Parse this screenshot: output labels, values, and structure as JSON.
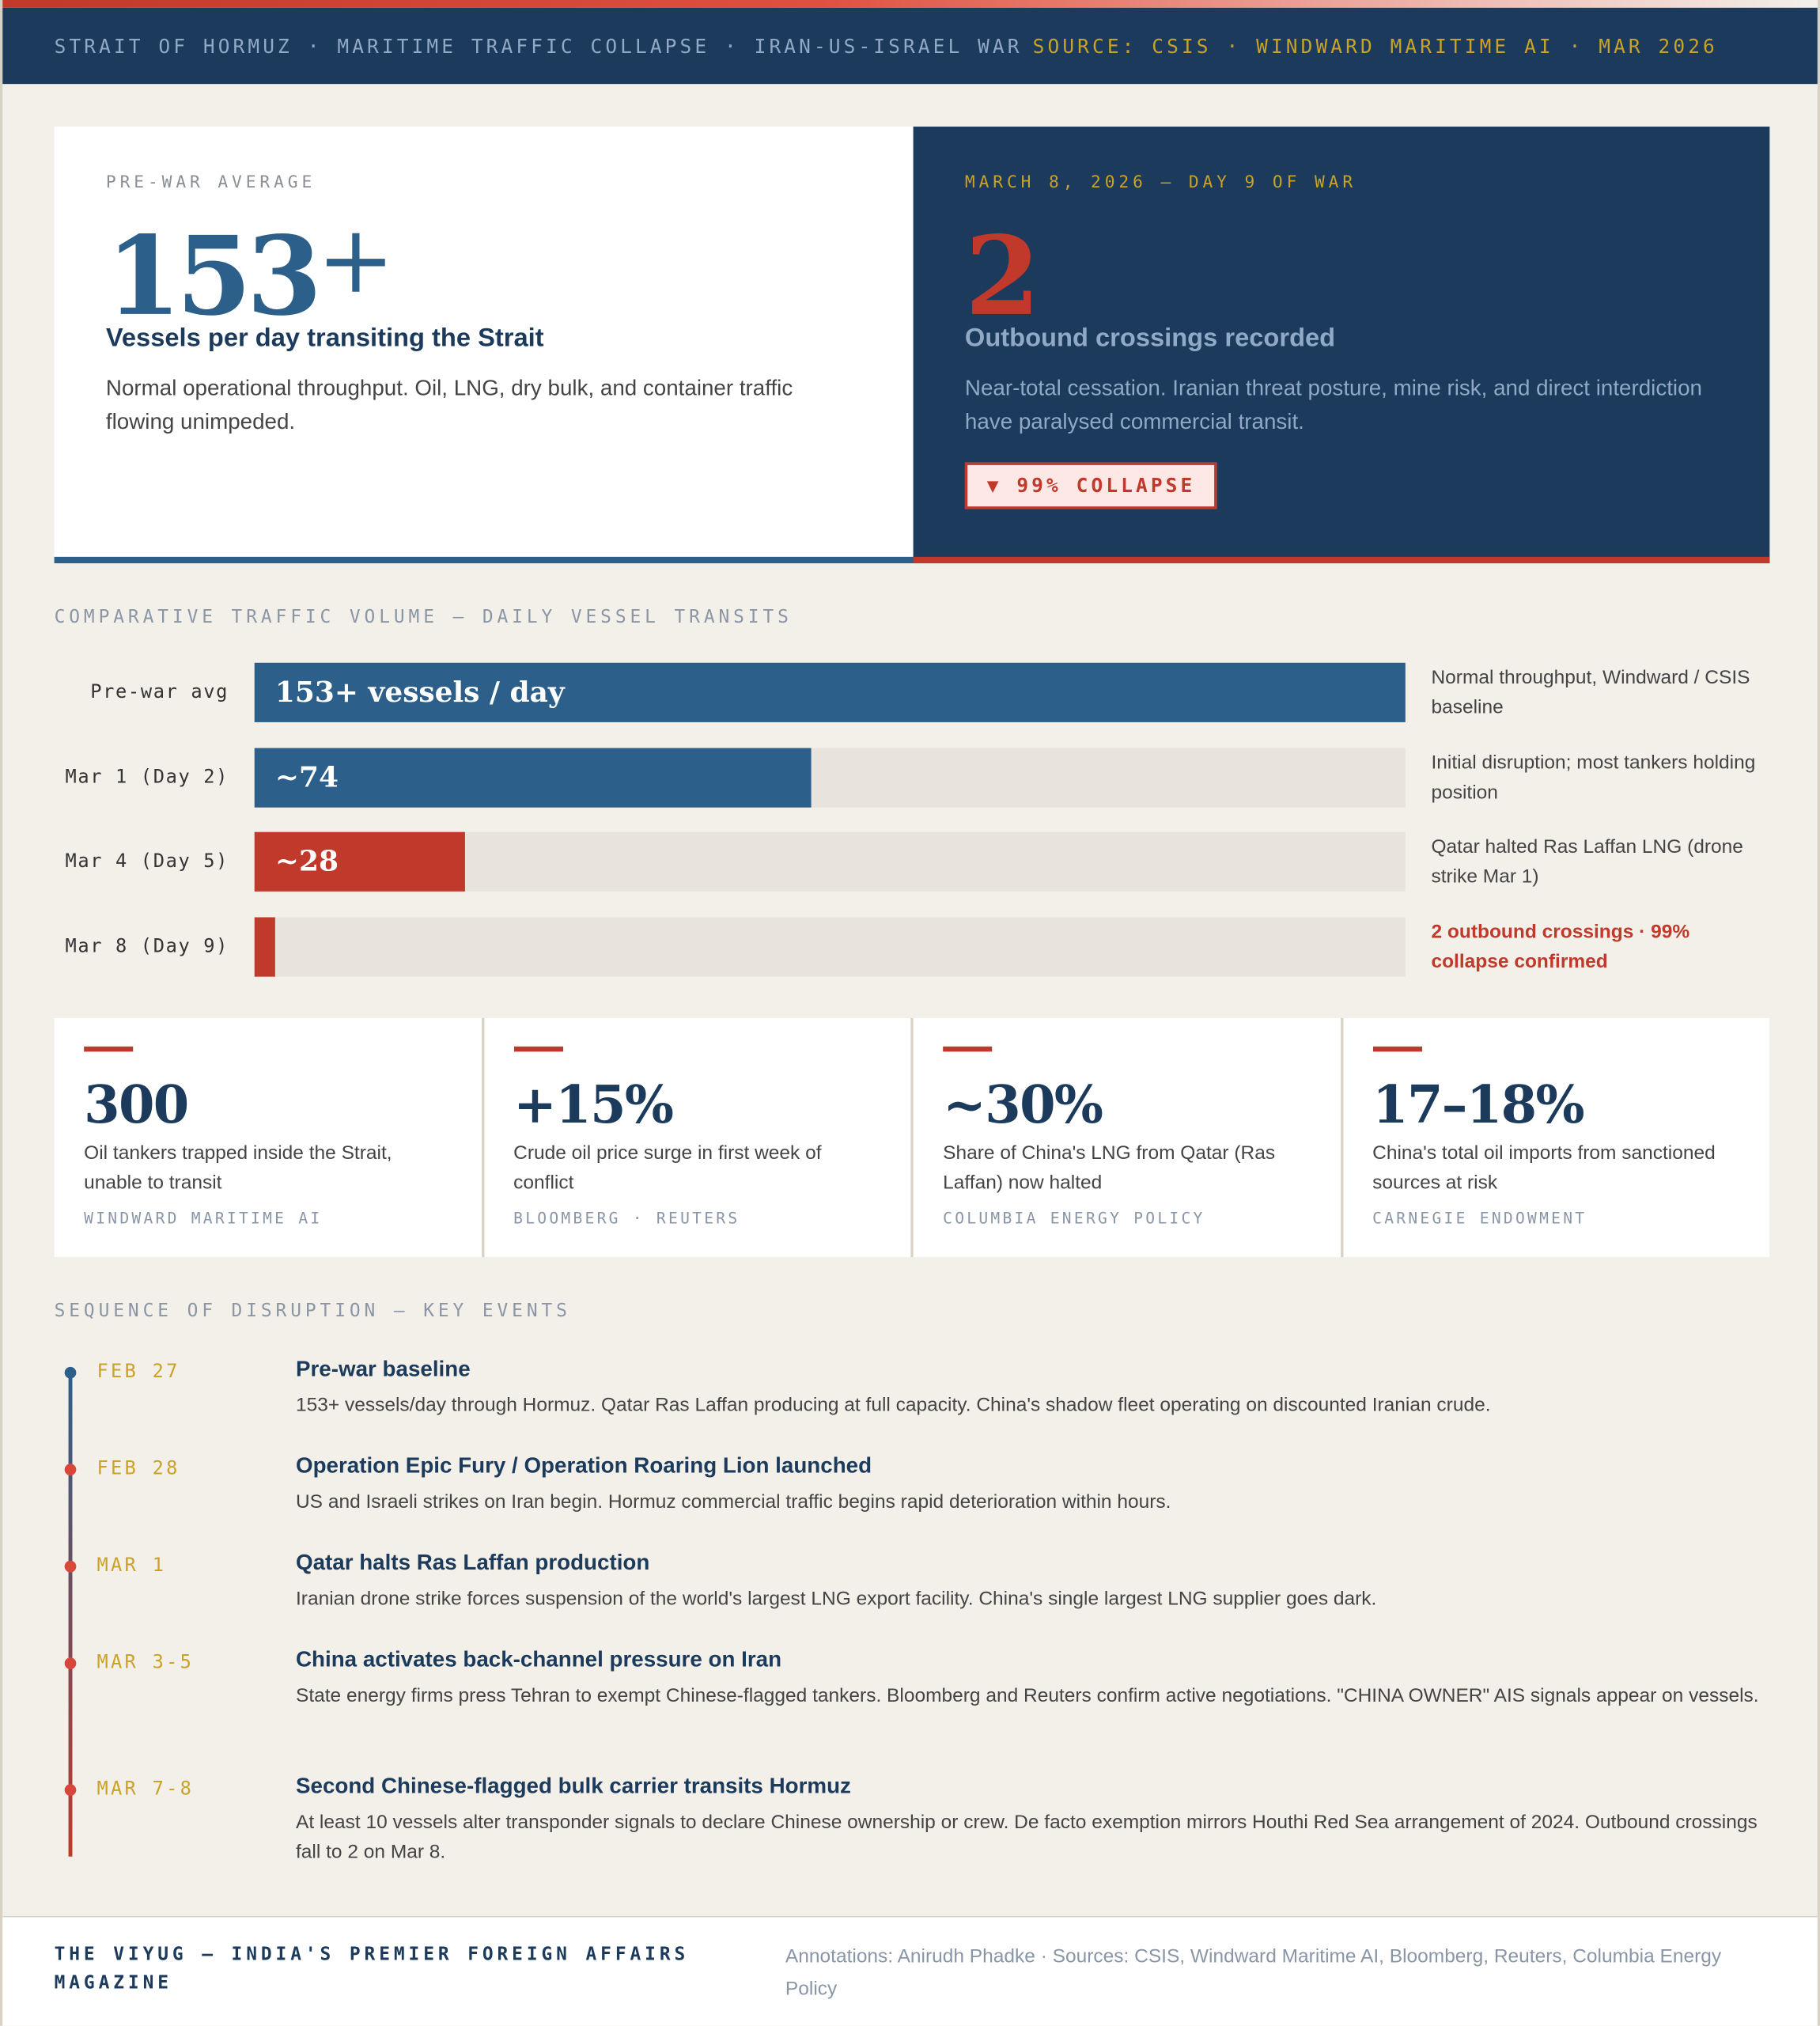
{
  "colors": {
    "navy": "#1b3a5c",
    "blue": "#2c5f8a",
    "red": "#c0392b",
    "gold": "#c9a227"
  },
  "header": {
    "title": "STRAIT OF HORMUZ · MARITIME TRAFFIC COLLAPSE · IRAN-US-ISRAEL WAR",
    "source": "SOURCE: CSIS · WINDWARD MARITIME AI · MAR 2026"
  },
  "hero": {
    "left": {
      "kicker": "PRE-WAR AVERAGE",
      "value": "153",
      "value_suffix": "+",
      "headline": "Vessels per day transiting the Strait",
      "desc": "Normal operational throughput. Oil, LNG, dry bulk, and container traffic flowing unimpeded."
    },
    "right": {
      "kicker": "MARCH 8, 2026 — DAY 9 OF WAR",
      "value": "2",
      "headline": "Outbound crossings recorded",
      "desc": "Near-total cessation. Iranian threat posture, mine risk, and direct interdiction have paralysed commercial transit.",
      "badge": "▼ 99% COLLAPSE"
    }
  },
  "chart_data": {
    "type": "bar",
    "title": "COMPARATIVE TRAFFIC VOLUME — DAILY VESSEL TRANSITS",
    "categories": [
      "Pre-war avg",
      "Mar 1 (Day 2)",
      "Mar 4 (Day 5)",
      "Mar 8 (Day 9)"
    ],
    "values": [
      153,
      74,
      28,
      2
    ],
    "value_labels": [
      "153+ vessels / day",
      "~74",
      "~28",
      ""
    ],
    "bar_colors": [
      "#2c5f8a",
      "#2c5f8a",
      "#c0392b",
      "#c0392b"
    ],
    "notes": [
      "Normal throughput, Windward / CSIS baseline",
      "Initial disruption; most tankers holding position",
      "Qatar halted Ras Laffan LNG (drone strike Mar 1)",
      "2 outbound crossings · 99% collapse confirmed"
    ],
    "xlim": [
      0,
      153
    ]
  },
  "stats": [
    {
      "value": "300",
      "desc": "Oil tankers trapped inside the Strait, unable to transit",
      "source": "WINDWARD MARITIME AI"
    },
    {
      "value": "+15%",
      "desc": "Crude oil price surge in first week of conflict",
      "source": "BLOOMBERG · REUTERS"
    },
    {
      "value": "~30%",
      "desc": "Share of China's LNG from Qatar (Ras Laffan) now halted",
      "source": "COLUMBIA ENERGY POLICY"
    },
    {
      "value": "17–18%",
      "desc": "China's total oil imports from sanctioned sources at risk",
      "source": "CARNEGIE ENDOWMENT"
    }
  ],
  "timeline": {
    "title": "SEQUENCE OF DISRUPTION — KEY EVENTS",
    "events": [
      {
        "date": "FEB 27",
        "title": "Pre-war baseline",
        "body": "153+ vessels/day through Hormuz. Qatar Ras Laffan producing at full capacity. China's shadow fleet operating on discounted Iranian crude."
      },
      {
        "date": "FEB 28",
        "title": "Operation Epic Fury / Operation Roaring Lion launched",
        "body": "US and Israeli strikes on Iran begin. Hormuz commercial traffic begins rapid deterioration within hours."
      },
      {
        "date": "MAR 1",
        "title": "Qatar halts Ras Laffan production",
        "body": "Iranian drone strike forces suspension of the world's largest LNG export facility. China's single largest LNG supplier goes dark."
      },
      {
        "date": "MAR 3-5",
        "title": "China activates back-channel pressure on Iran",
        "body": "State energy firms press Tehran to exempt Chinese-flagged tankers. Bloomberg and Reuters confirm active negotiations. \"CHINA OWNER\" AIS signals appear on vessels."
      },
      {
        "date": "MAR 7-8",
        "title": "Second Chinese-flagged bulk carrier transits Hormuz",
        "body": "At least 10 vessels alter transponder signals to declare Chinese ownership or crew. De facto exemption mirrors Houthi Red Sea arrangement of 2024. Outbound crossings fall to 2 on Mar 8."
      }
    ]
  },
  "footer": {
    "masthead": "THE VIYUG — INDIA'S PREMIER FOREIGN AFFAIRS MAGAZINE",
    "annotations": "Annotations: Anirudh Phadke · Sources: CSIS, Windward Maritime AI, Bloomberg, Reuters, Columbia Energy Policy"
  }
}
